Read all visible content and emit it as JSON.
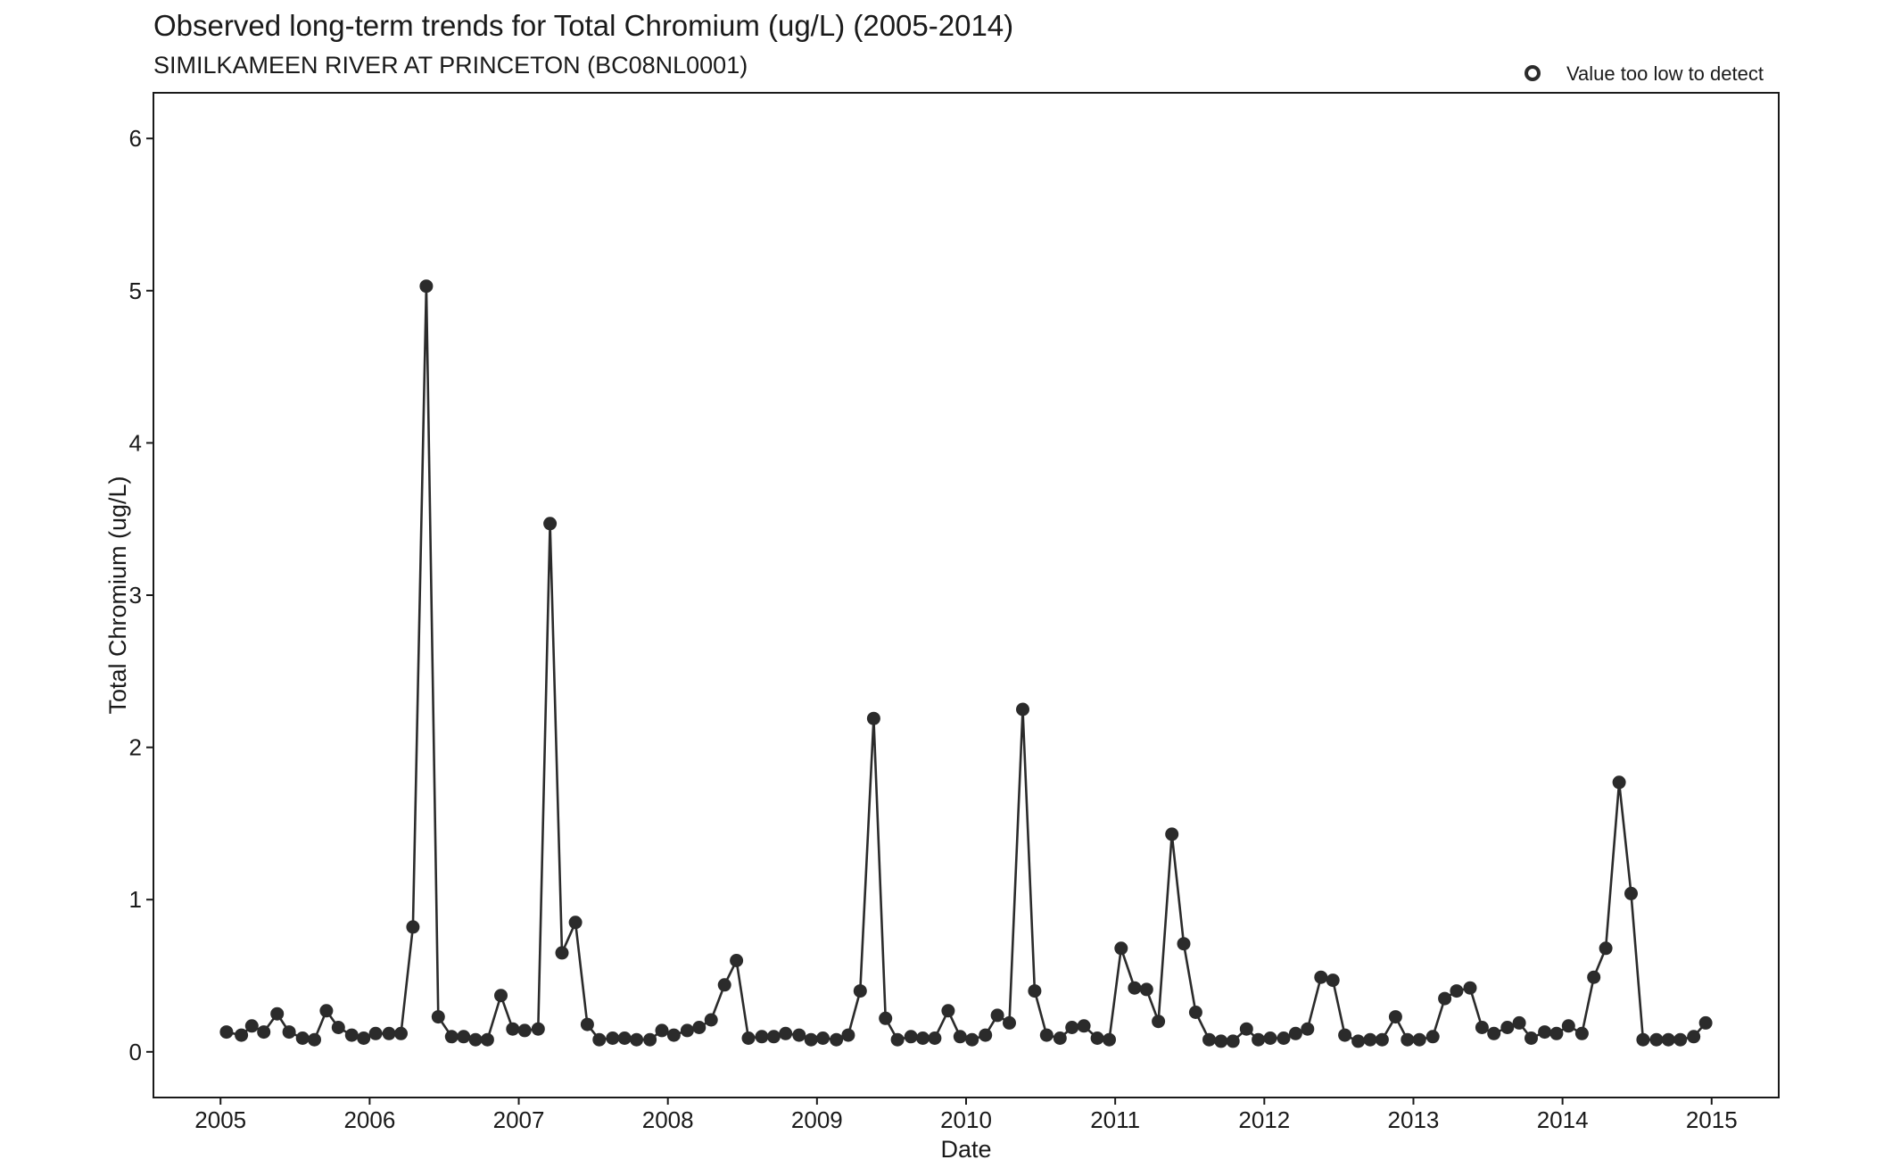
{
  "chart_data": {
    "type": "line",
    "title": "Observed long-term trends for Total Chromium (ug/L) (2005-2014)",
    "subtitle": "SIMILKAMEEN RIVER AT PRINCETON (BC08NL0001)",
    "xlabel": "Date",
    "ylabel": "Total Chromium (ug/L)",
    "xlim": [
      2004.55,
      2015.45
    ],
    "ylim": [
      -0.3,
      6.3
    ],
    "xticks": [
      2005,
      2006,
      2007,
      2008,
      2009,
      2010,
      2011,
      2012,
      2013,
      2014,
      2015
    ],
    "yticks": [
      0,
      1,
      2,
      3,
      4,
      5,
      6
    ],
    "grid": false,
    "legend_position": "top-right",
    "legend": [
      {
        "label": "Value too low to detect",
        "marker": "open-circle"
      }
    ],
    "colors": {
      "series": "#2b2b2b",
      "axis": "#1a1a1a",
      "background": "#ffffff"
    },
    "series": [
      {
        "marker": "filled-circle",
        "x": [
          2005.04,
          2005.14,
          2005.21,
          2005.29,
          2005.38,
          2005.46,
          2005.55,
          2005.63,
          2005.71,
          2005.79,
          2005.88,
          2005.96,
          2006.04,
          2006.13,
          2006.21,
          2006.29,
          2006.38,
          2006.46,
          2006.55,
          2006.63,
          2006.71,
          2006.79,
          2006.88,
          2006.96,
          2007.04,
          2007.13,
          2007.21,
          2007.29,
          2007.38,
          2007.46,
          2007.54,
          2007.63,
          2007.71,
          2007.79,
          2007.88,
          2007.96,
          2008.04,
          2008.13,
          2008.21,
          2008.29,
          2008.38,
          2008.46,
          2008.54,
          2008.63,
          2008.71,
          2008.79,
          2008.88,
          2008.96,
          2009.04,
          2009.13,
          2009.21,
          2009.29,
          2009.38,
          2009.46,
          2009.54,
          2009.63,
          2009.71,
          2009.79,
          2009.88,
          2009.96,
          2010.04,
          2010.13,
          2010.21,
          2010.29,
          2010.38,
          2010.46,
          2010.54,
          2010.63,
          2010.71,
          2010.79,
          2010.88,
          2010.96,
          2011.04,
          2011.13,
          2011.21,
          2011.29,
          2011.38,
          2011.46,
          2011.54,
          2011.63,
          2011.71,
          2011.79,
          2011.88,
          2011.96,
          2012.04,
          2012.13,
          2012.21,
          2012.29,
          2012.38,
          2012.46,
          2012.54,
          2012.63,
          2012.71,
          2012.79,
          2012.88,
          2012.96,
          2013.04,
          2013.13,
          2013.21,
          2013.29,
          2013.38,
          2013.46,
          2013.54,
          2013.63,
          2013.71,
          2013.79,
          2013.88,
          2013.96,
          2014.04,
          2014.13,
          2014.21,
          2014.29,
          2014.38,
          2014.46,
          2014.54,
          2014.63,
          2014.71,
          2014.79,
          2014.88,
          2014.96
        ],
        "y": [
          0.13,
          0.11,
          0.17,
          0.13,
          0.25,
          0.13,
          0.09,
          0.08,
          0.27,
          0.16,
          0.11,
          0.09,
          0.12,
          0.12,
          0.12,
          0.82,
          5.03,
          0.23,
          0.1,
          0.1,
          0.08,
          0.08,
          0.37,
          0.15,
          0.14,
          0.15,
          3.47,
          0.65,
          0.85,
          0.18,
          0.08,
          0.09,
          0.09,
          0.08,
          0.08,
          0.14,
          0.11,
          0.14,
          0.16,
          0.21,
          0.44,
          0.6,
          0.09,
          0.1,
          0.1,
          0.12,
          0.11,
          0.08,
          0.09,
          0.08,
          0.11,
          0.4,
          2.19,
          0.22,
          0.08,
          0.1,
          0.09,
          0.09,
          0.27,
          0.1,
          0.08,
          0.11,
          0.24,
          0.19,
          2.25,
          0.4,
          0.11,
          0.09,
          0.16,
          0.17,
          0.09,
          0.08,
          0.68,
          0.42,
          0.41,
          0.2,
          1.43,
          0.71,
          0.26,
          0.08,
          0.07,
          0.07,
          0.15,
          0.08,
          0.09,
          0.09,
          0.12,
          0.15,
          0.49,
          0.47,
          0.11,
          0.07,
          0.08,
          0.08,
          0.23,
          0.08,
          0.08,
          0.1,
          0.35,
          0.4,
          0.42,
          0.16,
          0.12,
          0.16,
          0.19,
          0.09,
          0.13,
          0.12,
          0.17,
          0.12,
          0.49,
          0.68,
          1.77,
          1.04,
          0.08,
          0.08,
          0.08,
          0.08,
          0.1,
          0.19
        ]
      }
    ]
  }
}
